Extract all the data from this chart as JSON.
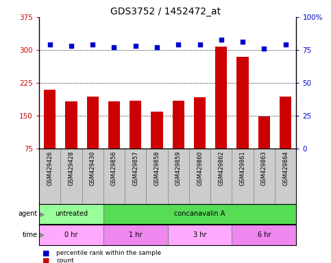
{
  "title": "GDS3752 / 1452472_at",
  "samples": [
    "GSM429426",
    "GSM429428",
    "GSM429430",
    "GSM429856",
    "GSM429857",
    "GSM429858",
    "GSM429859",
    "GSM429860",
    "GSM429862",
    "GSM429861",
    "GSM429863",
    "GSM429864"
  ],
  "counts": [
    210,
    183,
    193,
    182,
    185,
    160,
    185,
    192,
    308,
    285,
    148,
    193
  ],
  "percentile": [
    79,
    78,
    79,
    77,
    78,
    77,
    79,
    79,
    83,
    81,
    76,
    79
  ],
  "ylim_left": [
    75,
    375
  ],
  "ylim_right": [
    0,
    100
  ],
  "yticks_left": [
    75,
    150,
    225,
    300,
    375
  ],
  "yticks_right": [
    0,
    25,
    50,
    75,
    100
  ],
  "bar_color": "#cc0000",
  "dot_color": "#0000cc",
  "agent_groups": [
    {
      "label": "untreated",
      "start": 0,
      "end": 3,
      "color": "#99ff99"
    },
    {
      "label": "concanavalin A",
      "start": 3,
      "end": 12,
      "color": "#55dd55"
    }
  ],
  "time_groups": [
    {
      "label": "0 hr",
      "start": 0,
      "end": 3,
      "color": "#ffaaff"
    },
    {
      "label": "1 hr",
      "start": 3,
      "end": 6,
      "color": "#ee88ee"
    },
    {
      "label": "3 hr",
      "start": 6,
      "end": 9,
      "color": "#ffaaff"
    },
    {
      "label": "6 hr",
      "start": 9,
      "end": 12,
      "color": "#ee88ee"
    }
  ],
  "legend_count_color": "#cc0000",
  "legend_dot_color": "#0000cc",
  "bg_color": "#ffffff",
  "sample_bg_color": "#cccccc",
  "gridline_color": "#000000",
  "title_fontsize": 10,
  "label_fontsize": 7,
  "sample_fontsize": 6,
  "tick_fontsize": 7.5
}
